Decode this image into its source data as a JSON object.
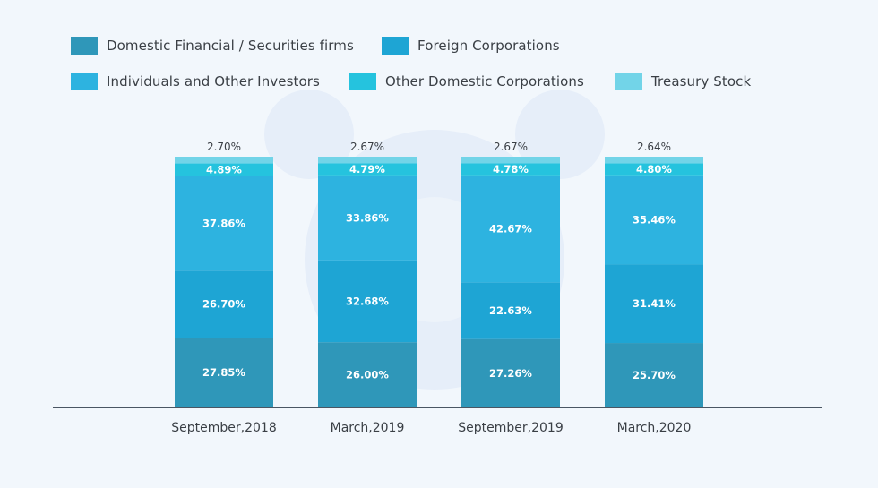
{
  "colors": {
    "background": "#f2f7fc",
    "axis": "#4a5663",
    "domestic_financial": "#2f97b9",
    "foreign_corporations": "#1ea5d4",
    "individuals": "#2db3e0",
    "other_domestic": "#25c3de",
    "treasury_stock": "#72d4e8"
  },
  "legend": [
    {
      "label": "Domestic Financial / Securities firms",
      "color": "#2f97b9"
    },
    {
      "label": "Foreign Corporations",
      "color": "#1ea5d4"
    },
    {
      "label": "Individuals and Other Investors",
      "color": "#2db3e0"
    },
    {
      "label": "Other Domestic Corporations",
      "color": "#25c3de"
    },
    {
      "label": "Treasury Stock",
      "color": "#72d4e8"
    }
  ],
  "chart_data": {
    "type": "bar",
    "stacked": true,
    "title": "",
    "xlabel": "",
    "ylabel": "",
    "ylim": [
      0,
      100
    ],
    "grid": false,
    "legend_position": "top",
    "categories": [
      "September,2018",
      "March,2019",
      "September,2019",
      "March,2020"
    ],
    "series": [
      {
        "name": "Domestic Financial / Securities firms",
        "values": [
          27.85,
          26.0,
          27.26,
          25.7
        ],
        "labels": [
          "27.85%",
          "26.00%",
          "27.26%",
          "25.70%"
        ]
      },
      {
        "name": "Foreign Corporations",
        "values": [
          26.7,
          32.68,
          22.63,
          31.41
        ],
        "labels": [
          "26.70%",
          "32.68%",
          "22.63%",
          "31.41%"
        ]
      },
      {
        "name": "Individuals and Other Investors",
        "values": [
          37.86,
          33.86,
          42.67,
          35.46
        ],
        "labels": [
          "37.86%",
          "33.86%",
          "42.67%",
          "35.46%"
        ]
      },
      {
        "name": "Other Domestic Corporations",
        "values": [
          4.89,
          4.79,
          4.78,
          4.8
        ],
        "labels": [
          "4.89%",
          "4.79%",
          "4.78%",
          "4.80%"
        ]
      },
      {
        "name": "Treasury Stock",
        "values": [
          2.7,
          2.67,
          2.67,
          2.64
        ],
        "labels": [
          "2.70%",
          "2.67%",
          "2.67%",
          "2.64%"
        ]
      }
    ]
  }
}
